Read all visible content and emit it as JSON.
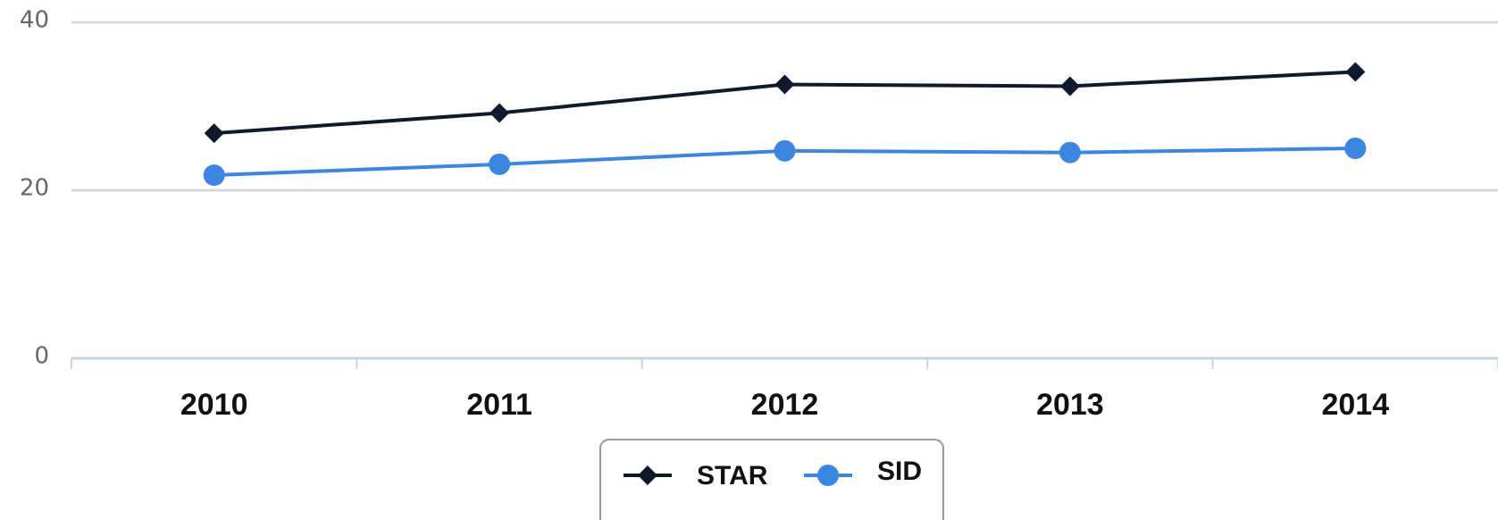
{
  "chart_data": {
    "type": "line",
    "categories": [
      "2010",
      "2011",
      "2012",
      "2013",
      "2014"
    ],
    "series": [
      {
        "name": "STAR",
        "color": "#0f1b2d",
        "marker": "diamond",
        "values": [
          26.8,
          29.2,
          32.6,
          32.4,
          34.1
        ]
      },
      {
        "name": "SID",
        "color": "#3a86e0",
        "marker": "circle",
        "values": [
          21.8,
          23.1,
          24.7,
          24.5,
          25.0
        ]
      }
    ],
    "ylim": [
      0,
      40
    ],
    "yticks": [
      0,
      20,
      40
    ],
    "grid": true,
    "legend": "bottom"
  }
}
